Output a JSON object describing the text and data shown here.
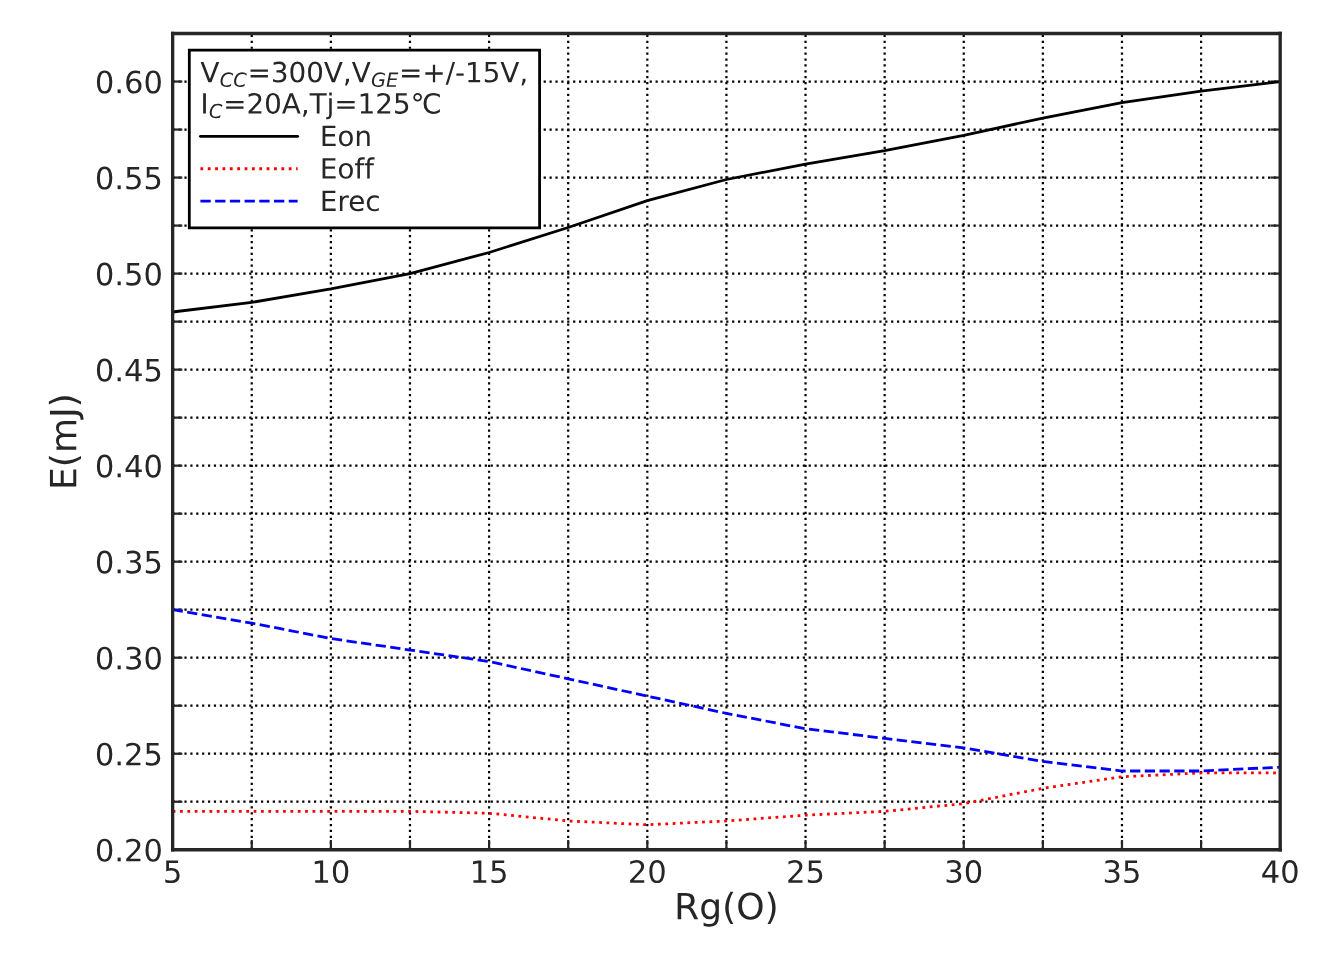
{
  "chart_data": {
    "type": "line",
    "xlabel": "Rg(O)",
    "ylabel": "E(mJ)",
    "legend_title": "V$_{CC}$=300V,V$_{GE}$=+/-15V,\nI$_{C}$=20A,Tj=125℃",
    "x": [
      5,
      7.5,
      10,
      12.5,
      15,
      17.5,
      20,
      22.5,
      25,
      27.5,
      30,
      32.5,
      35,
      37.5,
      40
    ],
    "series": [
      {
        "name": "Eon",
        "color": "#000000",
        "line_style": "solid",
        "values": [
          0.48,
          0.485,
          0.492,
          0.5,
          0.511,
          0.524,
          0.538,
          0.549,
          0.557,
          0.564,
          0.572,
          0.581,
          0.589,
          0.595,
          0.6
        ]
      },
      {
        "name": "Eoff",
        "color": "#ff0000",
        "line_style": "dotted",
        "values": [
          0.22,
          0.22,
          0.22,
          0.22,
          0.219,
          0.215,
          0.213,
          0.215,
          0.218,
          0.22,
          0.224,
          0.232,
          0.238,
          0.24,
          0.24
        ]
      },
      {
        "name": "Erec",
        "color": "#0000ff",
        "line_style": "dashed",
        "values": [
          0.325,
          0.318,
          0.31,
          0.304,
          0.298,
          0.289,
          0.28,
          0.271,
          0.263,
          0.258,
          0.253,
          0.246,
          0.241,
          0.241,
          0.243
        ]
      }
    ],
    "xlim": [
      5,
      40
    ],
    "xticks": [
      5,
      {
        "value": 7.5,
        "label": null
      },
      10,
      {
        "value": 12.5,
        "label": null
      },
      15,
      {
        "value": 17.5,
        "label": null
      },
      20,
      {
        "value": 22.5,
        "label": null
      },
      25,
      {
        "value": 27.5,
        "label": null
      },
      30,
      {
        "value": 32.5,
        "label": null
      },
      35,
      {
        "value": 37.5,
        "label": null
      },
      40
    ],
    "ylim": [
      0.2,
      0.625
    ],
    "yticks": [
      {
        "value": 0.2,
        "label": "0.20"
      },
      {
        "value": 0.225,
        "label": null
      },
      {
        "value": 0.25,
        "label": "0.25"
      },
      {
        "value": 0.275,
        "label": null
      },
      {
        "value": 0.3,
        "label": "0.30"
      },
      {
        "value": 0.325,
        "label": null
      },
      {
        "value": 0.35,
        "label": "0.35"
      },
      {
        "value": 0.375,
        "label": null
      },
      {
        "value": 0.4,
        "label": "0.40"
      },
      {
        "value": 0.425,
        "label": null
      },
      {
        "value": 0.45,
        "label": "0.45"
      },
      {
        "value": 0.475,
        "label": null
      },
      {
        "value": 0.5,
        "label": "0.50"
      },
      {
        "value": 0.525,
        "label": null
      },
      {
        "value": 0.55,
        "label": "0.55"
      },
      {
        "value": 0.575,
        "label": null
      },
      {
        "value": 0.6,
        "label": "0.60"
      }
    ],
    "grid": true,
    "legend": "top left"
  }
}
